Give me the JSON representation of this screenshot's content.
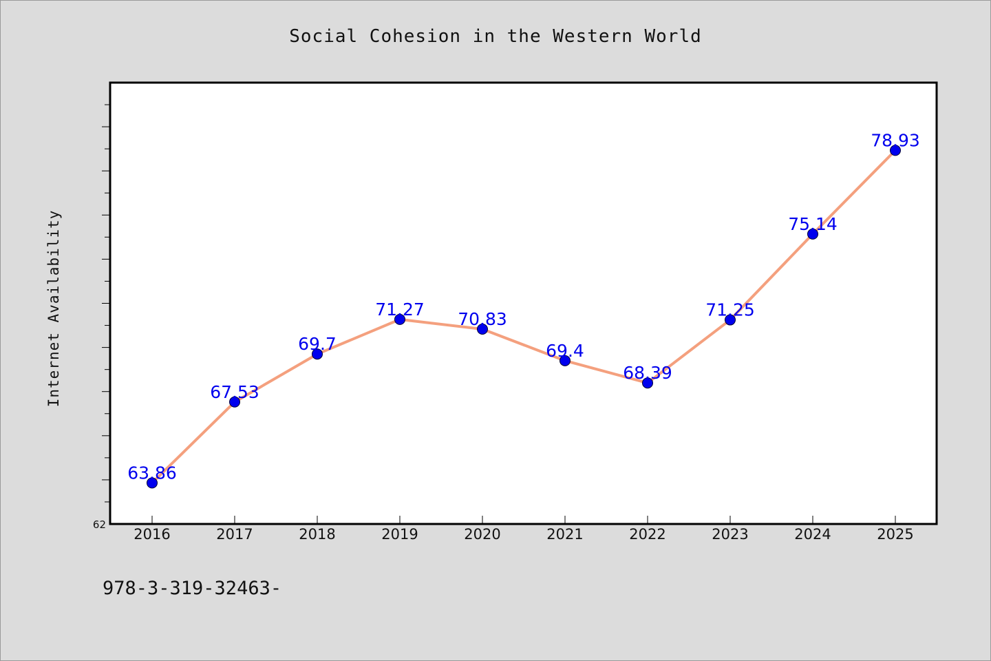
{
  "chart_data": {
    "type": "line",
    "title": "Social Cohesion in the Western World",
    "xlabel": "",
    "ylabel": "Internet Availability",
    "categories": [
      "2016",
      "2017",
      "2018",
      "2019",
      "2020",
      "2021",
      "2022",
      "2023",
      "2024",
      "2025"
    ],
    "series": [
      {
        "values": [
          63.86,
          67.53,
          69.7,
          71.27,
          70.83,
          69.4,
          68.39,
          71.25,
          75.14,
          78.93
        ],
        "data_labels": [
          "63.86",
          "67.53",
          "69.7",
          "71.27",
          "70.83",
          "69.4",
          "68.39",
          "71.25",
          "75.14",
          "78.93"
        ],
        "line_color": "#f4a07e",
        "marker_color": "#0000ee",
        "label_color": "#0000ee"
      }
    ],
    "ylim": [
      62,
      82
    ],
    "y_tick_labels": [
      "62"
    ],
    "y_minor_tick_step": 1,
    "grid": false,
    "legend": "none"
  },
  "footer": {
    "text": "978-3-319-32463-"
  },
  "colors": {
    "background": "#dcdcdc",
    "plot_area": "#ffffff",
    "axis": "#000000"
  }
}
